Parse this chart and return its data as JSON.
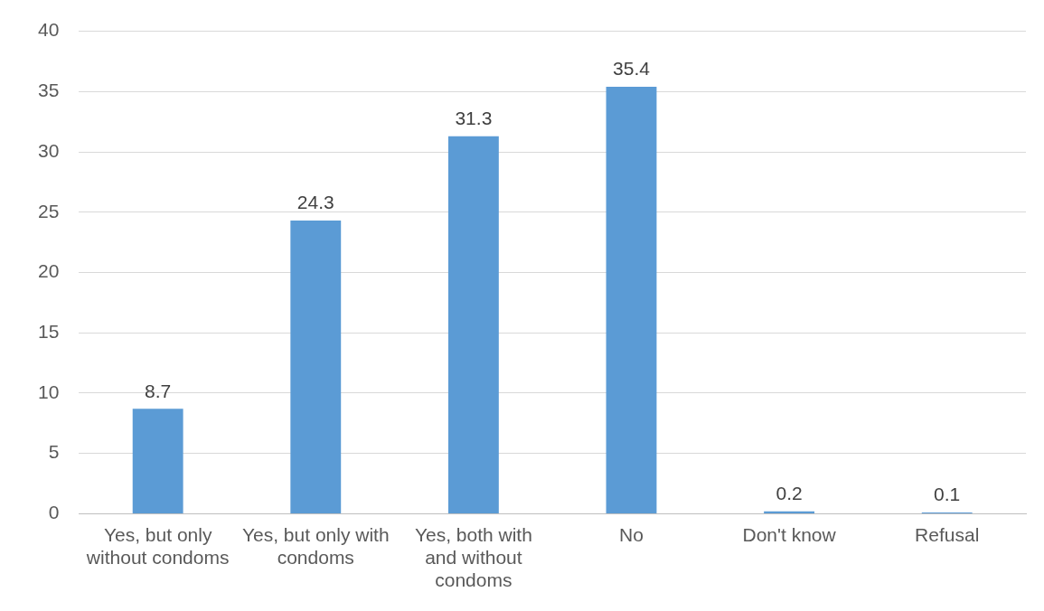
{
  "chart_data": {
    "type": "bar",
    "categories": [
      "Yes, but only without condoms",
      "Yes, but only with condoms",
      "Yes, both with and without condoms",
      "No",
      "Don't know",
      "Refusal"
    ],
    "values": [
      8.7,
      24.3,
      31.3,
      35.4,
      0.2,
      0.1
    ],
    "color": "#5b9bd5",
    "ylim": [
      0,
      40
    ],
    "yticks": [
      0,
      5,
      10,
      15,
      20,
      25,
      30,
      35,
      40
    ],
    "grid": "y",
    "data_labels": true,
    "legend": false
  }
}
